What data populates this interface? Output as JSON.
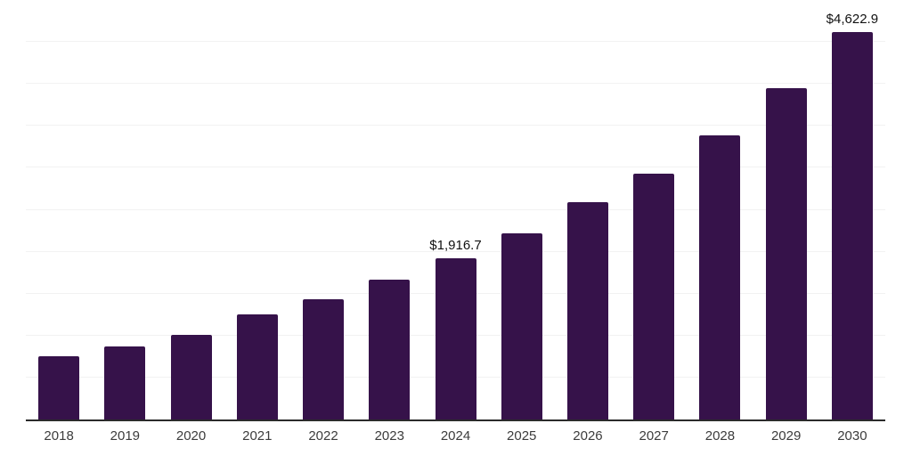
{
  "chart_data": {
    "type": "bar",
    "title": "",
    "xlabel": "",
    "ylabel": "",
    "categories": [
      "2018",
      "2019",
      "2020",
      "2021",
      "2022",
      "2023",
      "2024",
      "2025",
      "2026",
      "2027",
      "2028",
      "2029",
      "2030"
    ],
    "values": [
      755,
      870,
      1005,
      1250,
      1435,
      1670,
      1916.7,
      2220,
      2590,
      2925,
      3390,
      3950,
      4622.9
    ],
    "annotations": [
      {
        "category": "2024",
        "text": "$1,916.7"
      },
      {
        "category": "2030",
        "text": "$4,622.9"
      }
    ],
    "ylim": [
      0,
      5000
    ],
    "gridline_step": 500,
    "grid": true,
    "legend": false,
    "colors": {
      "bar": "#36124a",
      "gridline": "#f2f2f2",
      "axis_line": "#2b2b2b",
      "tick_label": "#3c3c3c",
      "value_label": "#111111",
      "background": "#ffffff"
    }
  }
}
